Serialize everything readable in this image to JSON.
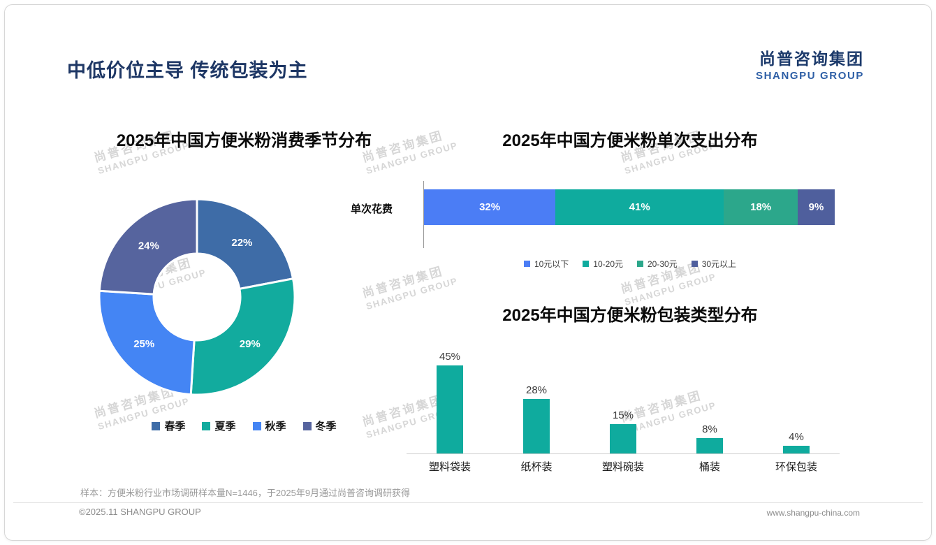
{
  "slide": {
    "title": "中低价位主导 传统包装为主",
    "logo_cn": "尚普咨询集团",
    "logo_en": "SHANGPU GROUP",
    "watermark_line1": "尚普咨询集团",
    "watermark_line2": "SHANGPU GROUP",
    "sample_note": "样本：方便米粉行业市场调研样本量N=1446，于2025年9月通过尚普咨询调研获得",
    "copyright": "©2025.11 SHANGPU GROUP",
    "website": "www.shangpu-china.com"
  },
  "colors": {
    "brand_navy": "#1e3765",
    "brand_blue": "#2e5fa6",
    "teal": "#0fab9e"
  },
  "chart_data": [
    {
      "id": "season-donut",
      "type": "pie",
      "title": "2025年中国方便米粉消费季节分布",
      "categories": [
        "春季",
        "夏季",
        "秋季",
        "冬季"
      ],
      "values": [
        22,
        29,
        25,
        24
      ],
      "labels": [
        "22%",
        "29%",
        "25%",
        "24%"
      ],
      "colors": [
        "#3e6ca7",
        "#12ab9e",
        "#4485f4",
        "#56649e"
      ],
      "legend_position": "bottom",
      "donut": true
    },
    {
      "id": "spend-stacked-bar",
      "type": "bar",
      "subtype": "horizontal-stacked",
      "title": "2025年中国方便米粉单次支出分布",
      "row_label": "单次花费",
      "categories": [
        "10元以下",
        "10-20元",
        "20-30元",
        "30元以上"
      ],
      "values": [
        32,
        41,
        18,
        9
      ],
      "labels": [
        "32%",
        "41%",
        "18%",
        "9%"
      ],
      "colors": [
        "#4b7df5",
        "#0fab9e",
        "#2ca78b",
        "#4f5f9d"
      ],
      "legend_position": "bottom",
      "xlim": [
        0,
        100
      ]
    },
    {
      "id": "packaging-bar",
      "type": "bar",
      "title": "2025年中国方便米粉包装类型分布",
      "categories": [
        "塑料袋装",
        "纸杯装",
        "塑料碗装",
        "桶装",
        "环保包装"
      ],
      "values": [
        45,
        28,
        15,
        8,
        4
      ],
      "labels": [
        "45%",
        "28%",
        "15%",
        "8%",
        "4%"
      ],
      "color": "#0fab9e",
      "ylim": [
        0,
        50
      ],
      "grid": false
    }
  ]
}
